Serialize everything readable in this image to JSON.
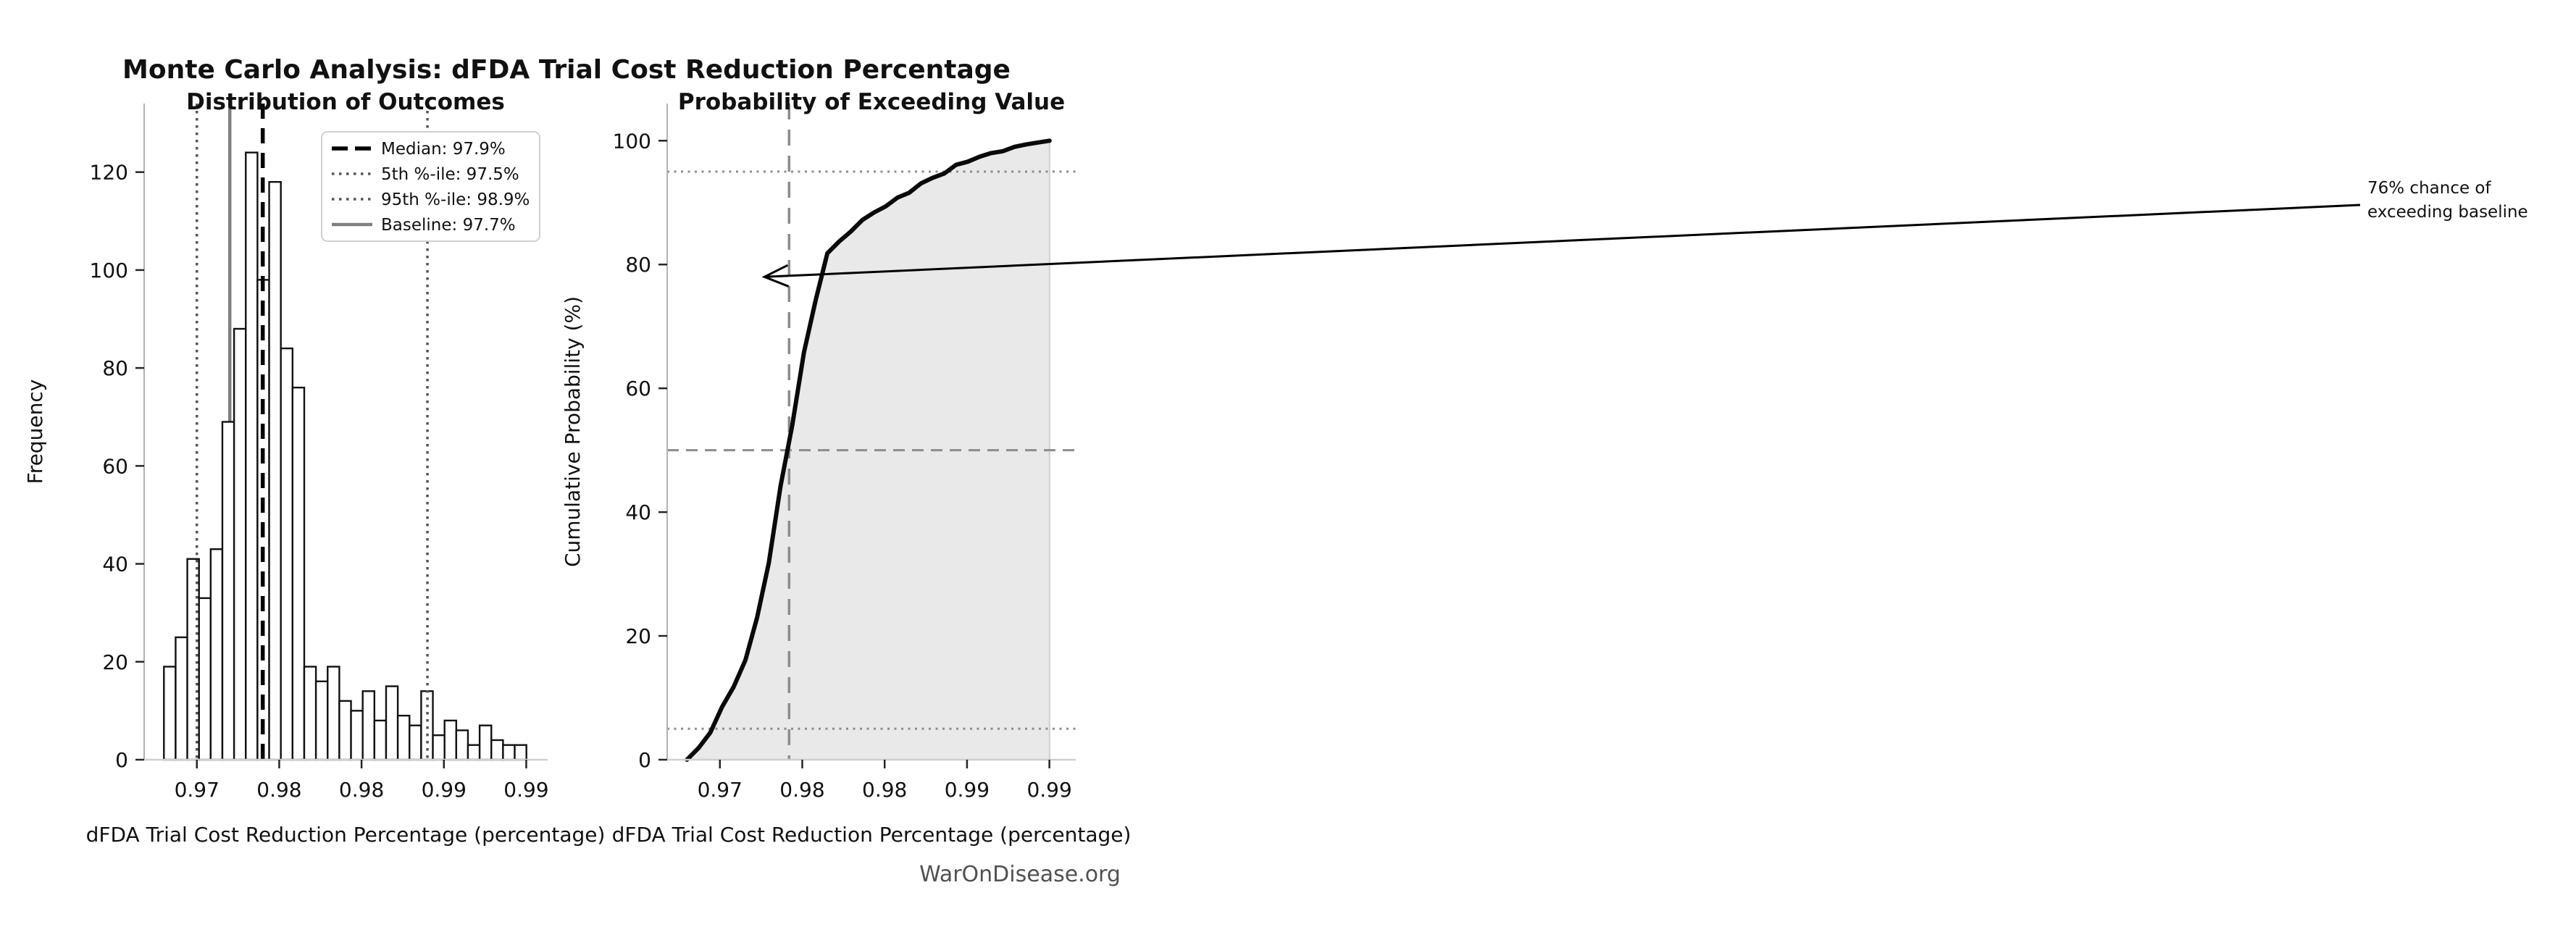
{
  "figure": {
    "title": "Monte Carlo Analysis: dFDA Trial Cost Reduction Percentage",
    "watermark": "WarOnDisease.org",
    "annotation": {
      "line1": "76% chance of",
      "line2": "exceeding baseline"
    },
    "colors": {
      "curve": "#0a0a0a",
      "area_fill": "#e9e9e9",
      "median_line": "#000000",
      "percentile_line": "#555555",
      "baseline_line": "#808080",
      "gray_refline": "#8c8c8c",
      "spine": "#b3b3b3",
      "bottom_spine": "#cfcfcf",
      "bar_fill": "#ffffff",
      "bar_edge": "#111111"
    }
  },
  "chart_data": [
    {
      "type": "bar",
      "subtype": "histogram",
      "title": "Distribution of Outcomes",
      "xlabel": "dFDA Trial Cost Reduction Percentage (percentage)",
      "ylabel": "Frequency",
      "n_samples": 1000,
      "bin_start": 0.973,
      "bin_width": 0.00071,
      "frequencies": [
        19,
        25,
        41,
        33,
        43,
        69,
        88,
        124,
        98,
        118,
        84,
        76,
        19,
        16,
        19,
        12,
        10,
        14,
        8,
        15,
        9,
        7,
        14,
        5,
        8,
        6,
        3,
        7,
        4,
        3,
        3
      ],
      "xlim": [
        0.9718,
        0.9963
      ],
      "ylim": [
        0,
        134
      ],
      "grid": false,
      "ytick_values": [
        0,
        20,
        40,
        60,
        80,
        100,
        120
      ],
      "ytick_labels": [
        "0",
        "20",
        "40",
        "60",
        "80",
        "100",
        "120"
      ],
      "xtick_values": [
        0.975,
        0.98,
        0.985,
        0.99,
        0.995
      ],
      "xtick_labels": [
        "0.97",
        "0.98",
        "0.98",
        "0.99",
        "0.99"
      ],
      "ref_lines": {
        "median": 0.979,
        "p5": 0.975,
        "p95": 0.989,
        "baseline": 0.977
      },
      "legend_position": "upper right",
      "legend": [
        {
          "label": "Median: 97.9%",
          "style": "dashed",
          "color": "#000000"
        },
        {
          "label": "5th %-ile: 97.5%",
          "style": "dotted",
          "color": "#555555"
        },
        {
          "label": "95th %-ile: 98.9%",
          "style": "dotted",
          "color": "#555555"
        },
        {
          "label": "Baseline: 97.7%",
          "style": "solid",
          "color": "#808080"
        }
      ]
    },
    {
      "type": "line",
      "subtype": "empirical-cdf",
      "title": "Probability of Exceeding Value",
      "xlabel": "dFDA Trial Cost Reduction Percentage (percentage)",
      "ylabel": "Cumulative Probability (%)",
      "x_start": 0.973,
      "x_step": 0.00071,
      "cumulative_pct": [
        0,
        1.9,
        4.4,
        8.5,
        11.8,
        16.1,
        23.0,
        31.8,
        44.2,
        54.0,
        65.8,
        74.2,
        81.8,
        83.7,
        85.3,
        87.2,
        88.4,
        89.4,
        90.8,
        91.6,
        93.1,
        94.0,
        94.7,
        96.1,
        96.6,
        97.4,
        98.0,
        98.3,
        99.0,
        99.4,
        99.7,
        100.0
      ],
      "xlim": [
        0.9718,
        0.9966
      ],
      "ylim": [
        0,
        106
      ],
      "grid": false,
      "ytick_values": [
        0,
        20,
        40,
        60,
        80,
        100
      ],
      "ytick_labels": [
        "0",
        "20",
        "40",
        "60",
        "80",
        "100"
      ],
      "xtick_values": [
        0.975,
        0.98,
        0.985,
        0.99,
        0.995
      ],
      "xtick_labels": [
        "0.97",
        "0.98",
        "0.98",
        "0.99",
        "0.99"
      ],
      "h_lines": {
        "dashed": 50,
        "dotted": [
          5,
          95
        ]
      },
      "v_line_dashed": 0.9792,
      "shaded_to": 0.995,
      "annotation_point": {
        "x": 0.9777,
        "y": 78
      }
    }
  ]
}
